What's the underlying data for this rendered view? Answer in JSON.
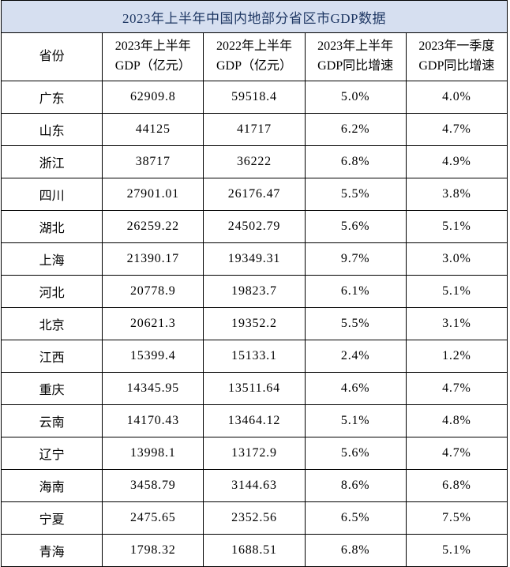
{
  "colors": {
    "title_background": "#d6dff0",
    "title_text": "#1f3864",
    "grid_border": "#000000",
    "cell_text": "#000000",
    "cell_background": "#ffffff"
  },
  "chart_data": {
    "type": "table",
    "title": "2023年上半年中国内地部分省区市GDP数据",
    "columns": [
      "省份",
      "2023年上半年\nGDP（亿元）",
      "2022年上半年\nGDP（亿元）",
      "2023年上半年\nGDP同比增速",
      "2023年一季度\nGDP同比增速"
    ],
    "rows": [
      [
        "广东",
        "62909.8",
        "59518.4",
        "5.0%",
        "4.0%"
      ],
      [
        "山东",
        "44125",
        "41717",
        "6.2%",
        "4.7%"
      ],
      [
        "浙江",
        "38717",
        "36222",
        "6.8%",
        "4.9%"
      ],
      [
        "四川",
        "27901.01",
        "26176.47",
        "5.5%",
        "3.8%"
      ],
      [
        "湖北",
        "26259.22",
        "24502.79",
        "5.6%",
        "5.1%"
      ],
      [
        "上海",
        "21390.17",
        "19349.31",
        "9.7%",
        "3.0%"
      ],
      [
        "河北",
        "20778.9",
        "19823.7",
        "6.1%",
        "5.1%"
      ],
      [
        "北京",
        "20621.3",
        "19352.2",
        "5.5%",
        "3.1%"
      ],
      [
        "江西",
        "15399.4",
        "15133.1",
        "2.4%",
        "1.2%"
      ],
      [
        "重庆",
        "14345.95",
        "13511.64",
        "4.6%",
        "4.7%"
      ],
      [
        "云南",
        "14170.43",
        "13464.12",
        "5.1%",
        "4.8%"
      ],
      [
        "辽宁",
        "13998.1",
        "13172.9",
        "5.6%",
        "4.7%"
      ],
      [
        "海南",
        "3458.79",
        "3144.63",
        "8.6%",
        "6.8%"
      ],
      [
        "宁夏",
        "2475.65",
        "2352.56",
        "6.5%",
        "7.5%"
      ],
      [
        "青海",
        "1798.32",
        "1688.51",
        "6.8%",
        "5.1%"
      ]
    ]
  }
}
